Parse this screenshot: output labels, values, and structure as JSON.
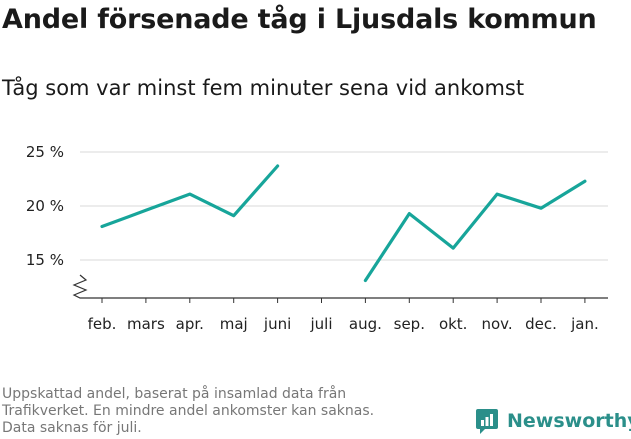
{
  "title": "Andel försenade tåg i Ljusdals kommun",
  "subtitle": "Tåg som var minst fem minuter sena vid ankomst",
  "footnote": [
    "Uppskattad andel, baserat på insamlad data från",
    "Trafikverket. En mindre andel ankomster kan saknas.",
    "Data saknas för juli."
  ],
  "brand": {
    "name": "Newsworthy",
    "icon": "newsworthy-logo-icon"
  },
  "colors": {
    "line": "#17a59a",
    "grid": "#d9d9d9",
    "axis": "#333333",
    "brand": "#2b8f8a"
  },
  "chart_data": {
    "type": "line",
    "title": "Andel försenade tåg i Ljusdals kommun",
    "subtitle": "Tåg som var minst fem minuter sena vid ankomst",
    "categories": [
      "feb.",
      "mars",
      "apr.",
      "maj",
      "juni",
      "juli",
      "aug.",
      "sep.",
      "okt.",
      "nov.",
      "dec.",
      "jan."
    ],
    "series": [
      {
        "values": [
          18.1,
          19.6,
          21.1,
          19.1,
          23.7,
          null,
          13.1,
          19.3,
          16.1,
          21.1,
          19.8,
          22.3
        ]
      }
    ],
    "yticks": [
      15,
      20,
      25
    ],
    "ytick_labels": [
      "15 %",
      "20 %",
      "25 %"
    ],
    "ylim": [
      11.5,
      25
    ],
    "y_axis_break": true,
    "grid": "horizontal",
    "legend": "none"
  }
}
